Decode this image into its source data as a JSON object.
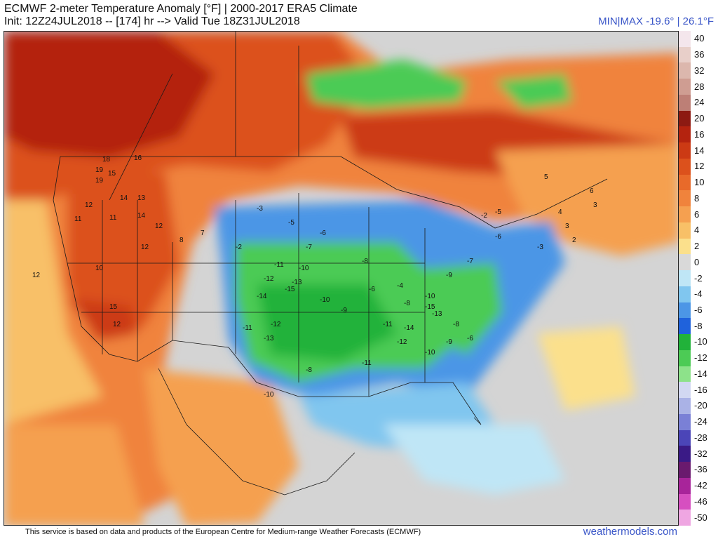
{
  "header": {
    "title_line1": "ECMWF 2-meter Temperature Anomaly [°F] | 2000-2017 ERA5 Climate",
    "title_line2": "Init: 12Z24JUL2018 -- [174] hr --> Valid Tue 18Z31JUL2018",
    "minmax": "MIN|MAX -19.6° | 26.1°F"
  },
  "footer": {
    "credit": "This service is based on data and products of the European Centre for Medium-range Weather Forecasts (ECMWF)",
    "brand": "weathermodels.com"
  },
  "colorbar": [
    {
      "label": "40",
      "color": "#f4e6ec"
    },
    {
      "label": "36",
      "color": "#e8cfc9"
    },
    {
      "label": "32",
      "color": "#dcb7ad"
    },
    {
      "label": "28",
      "color": "#cf9d92"
    },
    {
      "label": "24",
      "color": "#bd7f76"
    },
    {
      "label": "20",
      "color": "#8d1a12"
    },
    {
      "label": "16",
      "color": "#b4230f"
    },
    {
      "label": "14",
      "color": "#cc3a14"
    },
    {
      "label": "12",
      "color": "#dc511c"
    },
    {
      "label": "10",
      "color": "#e86a2a"
    },
    {
      "label": "8",
      "color": "#f0833c"
    },
    {
      "label": "6",
      "color": "#f5a050"
    },
    {
      "label": "4",
      "color": "#f8c067"
    },
    {
      "label": "2",
      "color": "#fbe08c"
    },
    {
      "label": "0",
      "color": "#d9d9d9"
    },
    {
      "label": "-2",
      "color": "#bfe6f6"
    },
    {
      "label": "-4",
      "color": "#80c6ef"
    },
    {
      "label": "-6",
      "color": "#4c96e6"
    },
    {
      "label": "-8",
      "color": "#1f62dc"
    },
    {
      "label": "-10",
      "color": "#21b23a"
    },
    {
      "label": "-12",
      "color": "#4ccb55"
    },
    {
      "label": "-14",
      "color": "#8de28a"
    },
    {
      "label": "-16",
      "color": "#d2d8f2"
    },
    {
      "label": "-20",
      "color": "#aab2e6"
    },
    {
      "label": "-24",
      "color": "#7a80d6"
    },
    {
      "label": "-28",
      "color": "#4b45b8"
    },
    {
      "label": "-32",
      "color": "#3a1a86"
    },
    {
      "label": "-36",
      "color": "#6a1a6e"
    },
    {
      "label": "-42",
      "color": "#a8249a"
    },
    {
      "label": "-46",
      "color": "#d64fc0"
    },
    {
      "label": "-50",
      "color": "#efa6e2"
    }
  ],
  "map_values": [
    {
      "t": "18"
    },
    {
      "t": "16"
    },
    {
      "t": "19"
    },
    {
      "t": "15"
    },
    {
      "t": "19"
    },
    {
      "t": "12"
    },
    {
      "t": "14"
    },
    {
      "t": "13"
    },
    {
      "t": "14"
    },
    {
      "t": "12"
    },
    {
      "t": "11"
    },
    {
      "t": "11"
    },
    {
      "t": "12"
    },
    {
      "t": "10"
    },
    {
      "t": "15"
    },
    {
      "t": "12"
    },
    {
      "t": "12"
    },
    {
      "t": "8"
    },
    {
      "t": "7"
    },
    {
      "t": "-2"
    },
    {
      "t": "-3"
    },
    {
      "t": "-5"
    },
    {
      "t": "-6"
    },
    {
      "t": "-7"
    },
    {
      "t": "-8"
    },
    {
      "t": "-11"
    },
    {
      "t": "-10"
    },
    {
      "t": "-12"
    },
    {
      "t": "-15"
    },
    {
      "t": "-13"
    },
    {
      "t": "-14"
    },
    {
      "t": "-11"
    },
    {
      "t": "-13"
    },
    {
      "t": "-12"
    },
    {
      "t": "-10"
    },
    {
      "t": "-9"
    },
    {
      "t": "-6"
    },
    {
      "t": "-4"
    },
    {
      "t": "-8"
    },
    {
      "t": "-10"
    },
    {
      "t": "-11"
    },
    {
      "t": "-14"
    },
    {
      "t": "-15"
    },
    {
      "t": "-13"
    },
    {
      "t": "-9"
    },
    {
      "t": "-7"
    },
    {
      "t": "-6"
    },
    {
      "t": "-3"
    },
    {
      "t": "-8"
    },
    {
      "t": "-6"
    },
    {
      "t": "-9"
    },
    {
      "t": "-10"
    },
    {
      "t": "-12"
    },
    {
      "t": "-5"
    },
    {
      "t": "-2"
    },
    {
      "t": "5"
    },
    {
      "t": "6"
    },
    {
      "t": "3"
    },
    {
      "t": "4"
    },
    {
      "t": "3"
    },
    {
      "t": "2"
    },
    {
      "t": "-10"
    },
    {
      "t": "-11"
    },
    {
      "t": "-8"
    }
  ]
}
